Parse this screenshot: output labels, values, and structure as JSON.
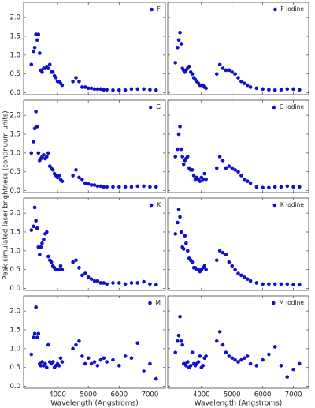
{
  "chart_data": [
    {
      "type": "scatter",
      "legend_label": "F",
      "legend": "upper right",
      "color": "#1010c8",
      "ylabel": "Peak simulated laser brightness (continuum units)",
      "x": [
        3150,
        3220,
        3260,
        3300,
        3340,
        3380,
        3420,
        3460,
        3500,
        3550,
        3600,
        3650,
        3700,
        3750,
        3800,
        3850,
        3900,
        3950,
        4000,
        4050,
        4100,
        4150,
        4500,
        4600,
        4700,
        4800,
        4900,
        5000,
        5100,
        5200,
        5300,
        5400,
        5500,
        5600,
        5800,
        6000,
        6200,
        6400,
        6600,
        6800,
        7000,
        7200
      ],
      "values": [
        0.75,
        1.1,
        1.2,
        1.55,
        1.4,
        1.55,
        1.05,
        0.6,
        0.55,
        0.65,
        0.65,
        0.7,
        0.65,
        0.75,
        0.55,
        0.55,
        0.45,
        0.4,
        0.3,
        0.3,
        0.25,
        0.2,
        0.3,
        0.4,
        0.3,
        0.15,
        0.15,
        0.12,
        0.12,
        0.1,
        0.1,
        0.1,
        0.08,
        0.08,
        0.07,
        0.07,
        0.07,
        0.1,
        0.1,
        0.1,
        0.08,
        0.07
      ],
      "xlim": [
        2900,
        7500
      ],
      "ylim": [
        -0.05,
        2.4
      ],
      "xticks": [
        4000,
        5000,
        6000,
        7000
      ],
      "yticks": [
        {
          "value": 0,
          "label": "0.0"
        },
        0.5,
        {
          "value": 1,
          "label": "1.0"
        },
        1.5,
        {
          "value": 2,
          "label": "2.0"
        }
      ]
    },
    {
      "type": "scatter",
      "legend_label": "F iodine",
      "legend": "upper right",
      "color": "#1010c8",
      "x": [
        3150,
        3220,
        3260,
        3300,
        3340,
        3380,
        3420,
        3460,
        3500,
        3550,
        3600,
        3650,
        3700,
        3750,
        3800,
        3850,
        3900,
        3950,
        4000,
        4050,
        4100,
        4150,
        4500,
        4600,
        4700,
        4800,
        4900,
        5000,
        5100,
        5200,
        5300,
        5400,
        5500,
        5600,
        5800,
        6000,
        6200,
        6400,
        6600,
        6800,
        7000,
        7200
      ],
      "values": [
        0.8,
        1.2,
        1.4,
        1.6,
        1.3,
        0.65,
        0.6,
        0.55,
        0.6,
        0.65,
        0.7,
        0.55,
        0.5,
        0.4,
        0.35,
        0.3,
        0.25,
        0.2,
        0.2,
        0.2,
        0.15,
        0.12,
        0.5,
        0.75,
        0.65,
        0.6,
        0.6,
        0.55,
        0.5,
        0.4,
        0.3,
        0.25,
        0.2,
        0.15,
        0.12,
        0.1,
        0.08,
        0.07,
        0.08,
        0.1,
        0.1,
        0.08
      ],
      "xlim": [
        2900,
        7500
      ],
      "ylim": [
        -0.05,
        2.4
      ],
      "xticks": [
        4000,
        5000,
        6000,
        7000
      ],
      "yticks": [
        {
          "value": 0,
          "label": "0.0"
        },
        0.5,
        {
          "value": 1,
          "label": "1.0"
        },
        1.5,
        {
          "value": 2,
          "label": "2.0"
        }
      ]
    },
    {
      "type": "scatter",
      "legend_label": "G",
      "legend": "upper right",
      "color": "#1010c8",
      "x": [
        3150,
        3220,
        3260,
        3300,
        3340,
        3380,
        3420,
        3460,
        3500,
        3550,
        3600,
        3650,
        3700,
        3750,
        3800,
        3850,
        3900,
        3950,
        4000,
        4050,
        4100,
        4150,
        4500,
        4600,
        4700,
        4800,
        4900,
        5000,
        5100,
        5200,
        5300,
        5400,
        5500,
        5600,
        5800,
        6000,
        6200,
        6400,
        6600,
        6800,
        7000,
        7200
      ],
      "values": [
        1.0,
        1.3,
        1.65,
        2.1,
        1.7,
        1.0,
        0.8,
        0.85,
        0.9,
        0.95,
        0.85,
        0.9,
        1.0,
        0.65,
        0.6,
        0.55,
        0.45,
        0.4,
        0.35,
        0.4,
        0.3,
        0.25,
        0.4,
        0.55,
        0.35,
        0.3,
        0.2,
        0.18,
        0.15,
        0.15,
        0.12,
        0.12,
        0.1,
        0.1,
        0.1,
        0.1,
        0.1,
        0.1,
        0.12,
        0.12,
        0.1,
        0.1
      ],
      "xlim": [
        2900,
        7500
      ],
      "ylim": [
        -0.05,
        2.4
      ],
      "xticks": [
        4000,
        5000,
        6000,
        7000
      ],
      "yticks": [
        {
          "value": 0,
          "label": "0.0"
        },
        0.5,
        {
          "value": 1,
          "label": "1.0"
        },
        1.5,
        {
          "value": 2,
          "label": "2.0"
        }
      ]
    },
    {
      "type": "scatter",
      "legend_label": "G iodine",
      "legend": "upper right",
      "color": "#1010c8",
      "x": [
        3150,
        3220,
        3260,
        3300,
        3340,
        3380,
        3420,
        3460,
        3500,
        3550,
        3600,
        3650,
        3700,
        3750,
        3800,
        3850,
        3900,
        3950,
        4000,
        4050,
        4100,
        4150,
        4500,
        4600,
        4700,
        4800,
        4900,
        5000,
        5100,
        5200,
        5300,
        5400,
        5500,
        5600,
        5800,
        6000,
        6200,
        6400,
        6600,
        6800,
        7000,
        7200
      ],
      "values": [
        0.9,
        1.1,
        1.5,
        1.7,
        1.1,
        0.9,
        0.7,
        0.8,
        0.85,
        0.9,
        0.6,
        0.55,
        0.55,
        0.4,
        0.3,
        0.35,
        0.3,
        0.25,
        0.35,
        0.3,
        0.45,
        0.3,
        0.6,
        0.9,
        0.8,
        0.6,
        0.65,
        0.6,
        0.55,
        0.5,
        0.4,
        0.3,
        0.25,
        0.2,
        0.1,
        0.08,
        0.08,
        0.1,
        0.1,
        0.12,
        0.1,
        0.1
      ],
      "xlim": [
        2900,
        7500
      ],
      "ylim": [
        -0.05,
        2.4
      ],
      "xticks": [
        4000,
        5000,
        6000,
        7000
      ],
      "yticks": [
        {
          "value": 0,
          "label": "0.0"
        },
        0.5,
        {
          "value": 1,
          "label": "1.0"
        },
        1.5,
        {
          "value": 2,
          "label": "2.0"
        }
      ]
    },
    {
      "type": "scatter",
      "legend_label": "K",
      "legend": "upper right",
      "color": "#1010c8",
      "x": [
        3150,
        3220,
        3260,
        3300,
        3340,
        3380,
        3420,
        3460,
        3500,
        3550,
        3600,
        3650,
        3700,
        3750,
        3800,
        3850,
        3900,
        3950,
        4000,
        4050,
        4100,
        4150,
        4500,
        4600,
        4700,
        4800,
        4900,
        5000,
        5100,
        5200,
        5300,
        5400,
        5500,
        5600,
        5800,
        6000,
        6200,
        6400,
        6600,
        6800,
        7000,
        7200
      ],
      "values": [
        1.55,
        1.65,
        2.15,
        1.8,
        1.6,
        1.1,
        0.9,
        1.1,
        1.2,
        1.3,
        1.45,
        1.5,
        0.85,
        0.75,
        0.7,
        0.6,
        0.55,
        0.5,
        0.5,
        0.5,
        0.6,
        0.5,
        0.7,
        0.75,
        0.55,
        0.35,
        0.4,
        0.3,
        0.25,
        0.2,
        0.2,
        0.15,
        0.15,
        0.12,
        0.15,
        0.15,
        0.12,
        0.15,
        0.15,
        0.18,
        0.12,
        0.1
      ],
      "xlim": [
        2900,
        7500
      ],
      "ylim": [
        -0.05,
        2.4
      ],
      "xticks": [
        4000,
        5000,
        6000,
        7000
      ],
      "yticks": [
        {
          "value": 0,
          "label": "0.0"
        },
        0.5,
        {
          "value": 1,
          "label": "1.0"
        },
        1.5,
        {
          "value": 2,
          "label": "2.0"
        }
      ]
    },
    {
      "type": "scatter",
      "legend_label": "K iodine",
      "legend": "upper right",
      "color": "#1010c8",
      "x": [
        3150,
        3220,
        3260,
        3300,
        3340,
        3380,
        3420,
        3460,
        3500,
        3550,
        3600,
        3650,
        3700,
        3750,
        3800,
        3850,
        3900,
        3950,
        4000,
        4050,
        4100,
        4150,
        4500,
        4600,
        4700,
        4800,
        4900,
        5000,
        5100,
        5200,
        5300,
        5400,
        5500,
        5600,
        5800,
        6000,
        6200,
        6400,
        6600,
        6800,
        7000,
        7200
      ],
      "values": [
        1.45,
        1.75,
        2.1,
        1.9,
        1.5,
        1.1,
        1.05,
        1.4,
        1.2,
        1.0,
        0.8,
        0.75,
        0.7,
        0.55,
        0.55,
        0.5,
        0.5,
        0.45,
        0.5,
        0.55,
        0.6,
        0.5,
        0.75,
        1.0,
        0.95,
        0.9,
        0.7,
        0.6,
        0.5,
        0.4,
        0.35,
        0.3,
        0.25,
        0.2,
        0.15,
        0.12,
        0.12,
        0.12,
        0.12,
        0.12,
        0.1,
        0.1
      ],
      "xlim": [
        2900,
        7500
      ],
      "ylim": [
        -0.05,
        2.4
      ],
      "xticks": [
        4000,
        5000,
        6000,
        7000
      ],
      "yticks": [
        {
          "value": 0,
          "label": "0.0"
        },
        0.5,
        {
          "value": 1,
          "label": "1.0"
        },
        1.5,
        {
          "value": 2,
          "label": "2.0"
        }
      ]
    },
    {
      "type": "scatter",
      "legend_label": "M",
      "legend": "upper right",
      "color": "#1010c8",
      "xlabel": "Wavelength (Angstroms)",
      "x": [
        3150,
        3220,
        3260,
        3300,
        3340,
        3380,
        3420,
        3460,
        3500,
        3550,
        3600,
        3650,
        3700,
        3750,
        3800,
        3850,
        3900,
        3950,
        4000,
        4050,
        4100,
        4150,
        4500,
        4600,
        4700,
        4800,
        4900,
        5000,
        5100,
        5200,
        5300,
        5400,
        5500,
        5600,
        5800,
        6000,
        6200,
        6400,
        6600,
        6800,
        7000,
        7200
      ],
      "values": [
        0.85,
        1.3,
        1.4,
        2.1,
        1.3,
        1.4,
        0.6,
        0.55,
        0.65,
        0.55,
        0.6,
        0.5,
        1.1,
        0.65,
        0.6,
        0.65,
        0.5,
        0.55,
        0.6,
        0.55,
        0.75,
        0.65,
        1.0,
        1.1,
        1.2,
        0.8,
        0.6,
        0.75,
        0.6,
        0.65,
        0.55,
        0.7,
        0.75,
        0.65,
        0.7,
        0.55,
        0.8,
        0.75,
        1.15,
        0.4,
        0.6,
        0.2
      ],
      "xlim": [
        2900,
        7500
      ],
      "ylim": [
        -0.05,
        2.4
      ],
      "xticks": [
        4000,
        5000,
        6000,
        7000
      ],
      "yticks": [
        {
          "value": 0,
          "label": "0.0"
        },
        0.5,
        {
          "value": 1,
          "label": "1.0"
        },
        1.5,
        {
          "value": 2,
          "label": "2.0"
        }
      ]
    },
    {
      "type": "scatter",
      "legend_label": "M iodine",
      "legend": "upper right",
      "color": "#1010c8",
      "xlabel": "Wavelength (Angstroms)",
      "x": [
        3150,
        3220,
        3260,
        3300,
        3340,
        3380,
        3420,
        3460,
        3500,
        3550,
        3600,
        3650,
        3700,
        3750,
        3800,
        3850,
        3900,
        3950,
        4000,
        4050,
        4100,
        4150,
        4500,
        4600,
        4700,
        4800,
        4900,
        5000,
        5100,
        5200,
        5300,
        5400,
        5500,
        5600,
        5800,
        6000,
        6200,
        6400,
        6600,
        6800,
        7000,
        7200
      ],
      "values": [
        0.9,
        1.2,
        1.35,
        1.85,
        1.2,
        1.1,
        0.6,
        0.6,
        0.55,
        0.65,
        0.5,
        0.55,
        0.9,
        0.6,
        0.55,
        0.6,
        0.65,
        0.8,
        0.5,
        0.55,
        0.75,
        0.8,
        1.2,
        1.45,
        1.1,
        0.9,
        0.8,
        0.75,
        0.7,
        0.65,
        0.7,
        0.75,
        0.8,
        0.6,
        0.55,
        0.7,
        0.85,
        1.05,
        0.55,
        0.25,
        0.45,
        0.6
      ],
      "xlim": [
        2900,
        7500
      ],
      "ylim": [
        -0.05,
        2.4
      ],
      "xticks": [
        4000,
        5000,
        6000,
        7000
      ],
      "yticks": [
        {
          "value": 0,
          "label": "0.0"
        },
        0.5,
        {
          "value": 1,
          "label": "1.0"
        },
        1.5,
        {
          "value": 2,
          "label": "2.0"
        }
      ]
    }
  ]
}
